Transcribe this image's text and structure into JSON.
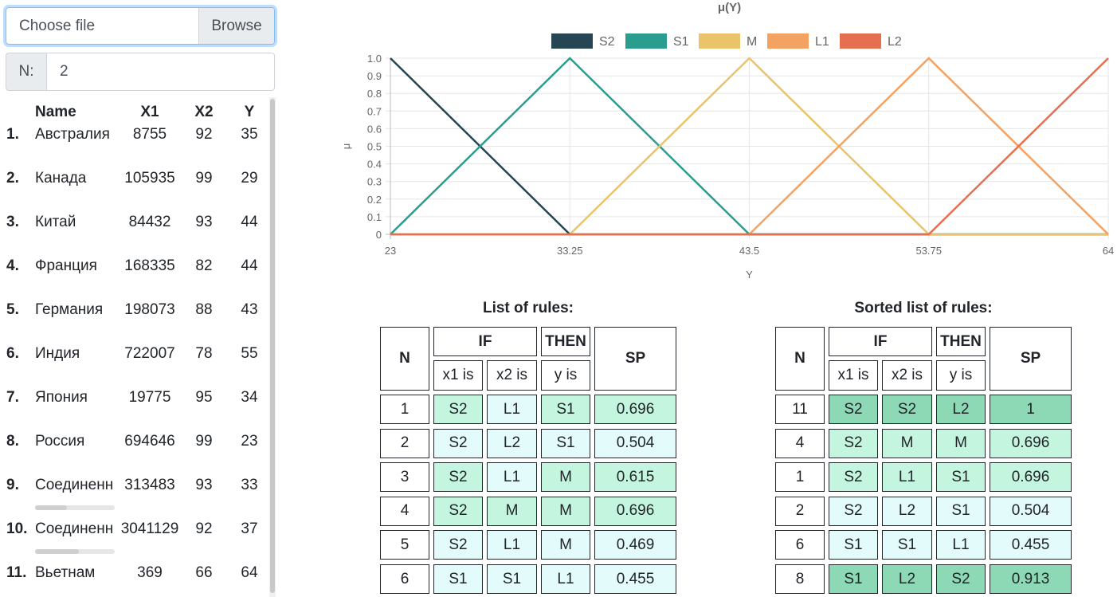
{
  "file_input": {
    "label": "Choose file",
    "browse": "Browse"
  },
  "n_input": {
    "prefix": "N:",
    "value": "2"
  },
  "data_table": {
    "headers": [
      "Name",
      "X1",
      "X2",
      "Y"
    ],
    "rows": [
      {
        "num": "1.",
        "name": "Австралия",
        "x1": "8755",
        "x2": "92",
        "y": "35"
      },
      {
        "num": "2.",
        "name": "Канада",
        "x1": "105935",
        "x2": "99",
        "y": "29"
      },
      {
        "num": "3.",
        "name": "Китай",
        "x1": "84432",
        "x2": "93",
        "y": "44"
      },
      {
        "num": "4.",
        "name": "Франция",
        "x1": "168335",
        "x2": "82",
        "y": "44"
      },
      {
        "num": "5.",
        "name": "Германия",
        "x1": "198073",
        "x2": "88",
        "y": "43"
      },
      {
        "num": "6.",
        "name": "Индия",
        "x1": "722007",
        "x2": "78",
        "y": "55"
      },
      {
        "num": "7.",
        "name": "Япония",
        "x1": "19775",
        "x2": "95",
        "y": "34"
      },
      {
        "num": "8.",
        "name": "Россия",
        "x1": "694646",
        "x2": "99",
        "y": "23"
      },
      {
        "num": "9.",
        "name": "Соединенн",
        "x1": "313483",
        "x2": "93",
        "y": "33",
        "scroll": 0.4
      },
      {
        "num": "10.",
        "name": "Соединенн",
        "x1": "3041129",
        "x2": "92",
        "y": "37",
        "scroll": 0.55
      },
      {
        "num": "11.",
        "name": "Вьетнам",
        "x1": "369",
        "x2": "66",
        "y": "64"
      }
    ]
  },
  "chart_data": {
    "type": "line",
    "title": "μ(Y)",
    "xlabel": "Y",
    "ylabel": "μ",
    "x": [
      23,
      33.25,
      43.5,
      53.75,
      64
    ],
    "x_tick_labels": [
      "23",
      "33.25",
      "43.5",
      "53.75",
      "64"
    ],
    "y_tick_labels": [
      "1.0",
      "0.9",
      "0.8",
      "0.7",
      "0.6",
      "0.5",
      "0.4",
      "0.3",
      "0.2",
      "0.1",
      "0"
    ],
    "ylim": [
      0,
      1
    ],
    "grid": true,
    "legend_position": "top",
    "series": [
      {
        "name": "S2",
        "color": "#264653",
        "values": [
          1,
          0,
          0,
          0,
          0
        ]
      },
      {
        "name": "S1",
        "color": "#2a9d8f",
        "values": [
          0,
          1,
          0,
          0,
          0
        ]
      },
      {
        "name": "M",
        "color": "#e9c46a",
        "values": [
          0,
          0,
          1,
          0,
          0
        ]
      },
      {
        "name": "L1",
        "color": "#f4a261",
        "values": [
          0,
          0,
          0,
          1,
          0
        ]
      },
      {
        "name": "L2",
        "color": "#e76f51",
        "values": [
          0,
          0,
          0,
          0,
          1
        ]
      }
    ]
  },
  "rules_list": {
    "title": "List of rules:",
    "headers": {
      "n": "N",
      "if": "IF",
      "then": "THEN",
      "sp": "SP",
      "x1": "x1 is",
      "x2": "x2 is",
      "y": "y is"
    },
    "rows": [
      {
        "n": "1",
        "x1": "S2",
        "x2": "L1",
        "y": "S1",
        "sp": "0.696"
      },
      {
        "n": "2",
        "x1": "S2",
        "x2": "L2",
        "y": "S1",
        "sp": "0.504"
      },
      {
        "n": "3",
        "x1": "S2",
        "x2": "L1",
        "y": "M",
        "sp": "0.615"
      },
      {
        "n": "4",
        "x1": "S2",
        "x2": "M",
        "y": "M",
        "sp": "0.696"
      },
      {
        "n": "5",
        "x1": "S2",
        "x2": "L1",
        "y": "M",
        "sp": "0.469"
      },
      {
        "n": "6",
        "x1": "S1",
        "x2": "S1",
        "y": "L1",
        "sp": "0.455"
      }
    ]
  },
  "sorted_rules": {
    "title": "Sorted list of rules:",
    "headers": {
      "n": "N",
      "if": "IF",
      "then": "THEN",
      "sp": "SP",
      "x1": "x1 is",
      "x2": "x2 is",
      "y": "y is"
    },
    "rows": [
      {
        "n": "11",
        "x1": "S2",
        "x2": "S2",
        "y": "L2",
        "sp": "1"
      },
      {
        "n": "4",
        "x1": "S2",
        "x2": "M",
        "y": "M",
        "sp": "0.696"
      },
      {
        "n": "1",
        "x1": "S2",
        "x2": "L1",
        "y": "S1",
        "sp": "0.696"
      },
      {
        "n": "2",
        "x1": "S2",
        "x2": "L2",
        "y": "S1",
        "sp": "0.504"
      },
      {
        "n": "6",
        "x1": "S1",
        "x2": "S1",
        "y": "L1",
        "sp": "0.455"
      },
      {
        "n": "8",
        "x1": "S1",
        "x2": "L2",
        "y": "S2",
        "sp": "0.913"
      }
    ]
  },
  "colors": {
    "sp_high": "#8ed9b5",
    "sp_mid": "#c4f5de",
    "sp_low": "#e3fbfa",
    "cell_low": "#e3fbfa"
  }
}
